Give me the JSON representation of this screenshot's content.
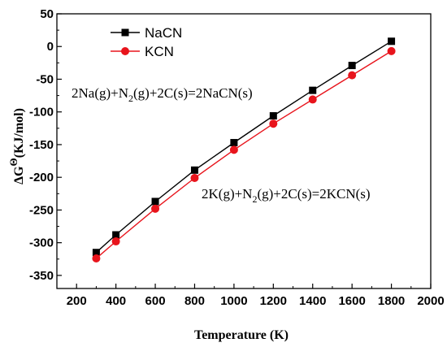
{
  "chart_data": {
    "type": "line",
    "xlabel": "Temperature (K)",
    "ylabel": {
      "prefix": "ΔG",
      "superscript": "Θ",
      "suffix": "(KJ/mol)"
    },
    "xlim": [
      100,
      2000
    ],
    "ylim": [
      -370,
      50
    ],
    "xticks": [
      200,
      400,
      600,
      800,
      1000,
      1200,
      1400,
      1600,
      1800,
      2000
    ],
    "yticks": [
      50,
      0,
      -50,
      -100,
      -150,
      -200,
      -250,
      -300,
      -350
    ],
    "legend_position": "top-left",
    "x": [
      300,
      400,
      600,
      800,
      1000,
      1200,
      1400,
      1600,
      1800
    ],
    "series": [
      {
        "name": "NaCN",
        "color": "#000000",
        "marker": "square",
        "values": [
          -315,
          -288,
          -237,
          -189,
          -147,
          -106,
          -67,
          -29,
          8
        ]
      },
      {
        "name": "KCN",
        "color": "#e8141c",
        "marker": "circle",
        "values": [
          -324,
          -298,
          -248,
          -201,
          -158,
          -118,
          -81,
          -44,
          -7
        ]
      }
    ],
    "annotations": [
      {
        "parts": [
          {
            "t": "2Na(g)+N"
          },
          {
            "t": "2",
            "sub": true
          },
          {
            "t": "(g)+2C(s)=2NaCN(s)"
          }
        ]
      },
      {
        "parts": [
          {
            "t": "2K(g)+N"
          },
          {
            "t": "2",
            "sub": true
          },
          {
            "t": "(g)+2C(s)=2KCN(s)"
          }
        ]
      }
    ]
  }
}
